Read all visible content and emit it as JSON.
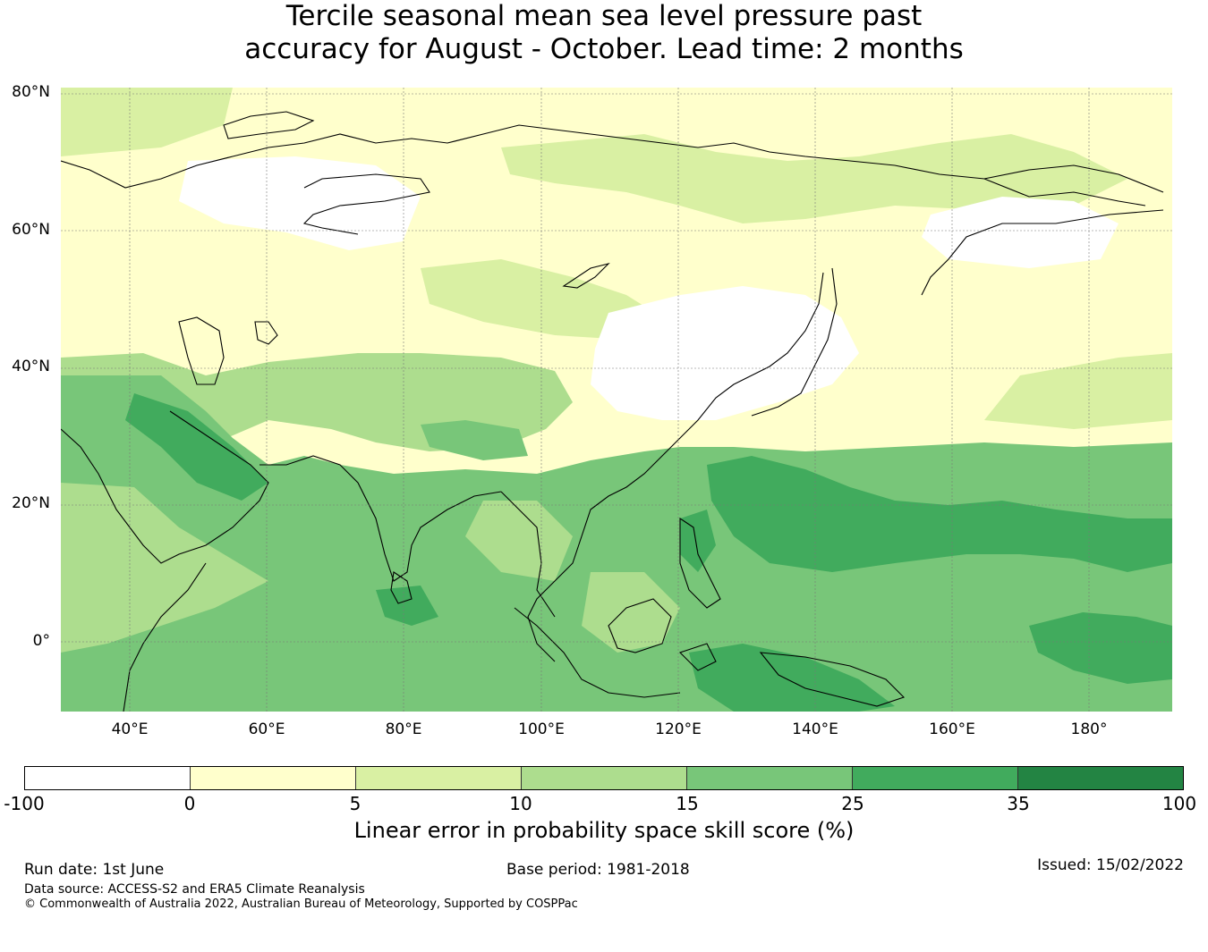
{
  "title_line1": "Tercile seasonal mean sea level pressure past",
  "title_line2": "accuracy for August - October. Lead time: 2 months",
  "lat_labels": [
    "80°N",
    "60°N",
    "40°N",
    "20°N",
    "0°"
  ],
  "lon_labels": [
    "40°E",
    "60°E",
    "80°E",
    "100°E",
    "120°E",
    "140°E",
    "160°E",
    "180°"
  ],
  "colorbar": {
    "label": "Linear error in probability space skill score (%)",
    "ticks": [
      "-100",
      "0",
      "5",
      "10",
      "15",
      "25",
      "35",
      "100"
    ],
    "colors": [
      "#ffffff",
      "#ffffcc",
      "#d9f0a3",
      "#addd8e",
      "#78c679",
      "#41ab5d",
      "#238443"
    ]
  },
  "map_extent": {
    "lon_min": 30,
    "lon_max": 192,
    "lat_min": -10,
    "lat_max": 80
  },
  "footer": {
    "run_date": "Run date: 1st June",
    "base_period": "Base period: 1981-2018",
    "issued": "Issued: 15/02/2022",
    "data_source": "Data source: ACCESS-S2 and ERA5 Climate Reanalysis",
    "copyright": "© Commonwealth of Australia 2022, Australian Bureau of Meteorology, Supported by COSPPac"
  }
}
